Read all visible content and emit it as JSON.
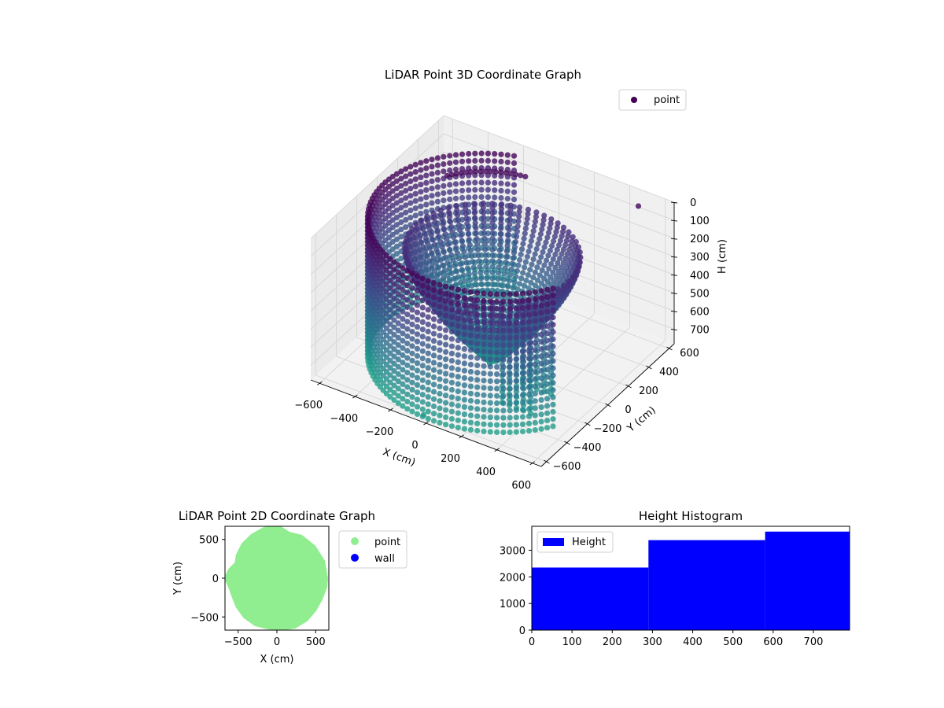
{
  "chart_data": [
    {
      "type": "scatter3d",
      "title": "LiDAR Point 3D Coordinate Graph",
      "xlabel": "X (cm)",
      "ylabel": "Y (cm)",
      "zlabel": "H (cm)",
      "xlim": [
        -650,
        650
      ],
      "ylim": [
        -650,
        650
      ],
      "zlim": [
        780,
        0
      ],
      "z_inverted": true,
      "x_ticks": [
        -600,
        -400,
        -200,
        0,
        200,
        400,
        600
      ],
      "y_ticks": [
        -600,
        -400,
        -200,
        0,
        200,
        400,
        600
      ],
      "z_ticks": [
        0,
        100,
        200,
        300,
        400,
        500,
        600,
        700
      ],
      "grid": true,
      "legend": {
        "position": "top-right",
        "entries": [
          {
            "name": "point",
            "color": "#440154"
          }
        ]
      },
      "colormap": "viridis",
      "series": [
        {
          "name": "point",
          "description_free": true,
          "bowl_wall": {
            "radius_top": 430,
            "radius_bottom": 30,
            "z_top": 180,
            "z_bottom": 760,
            "center": [
              0,
              0
            ]
          },
          "outer_arc": {
            "radius": 610,
            "theta_start_deg": 110,
            "theta_end_deg": 330,
            "z_top": 20,
            "z_bottom": 780
          },
          "rim_arc": {
            "radius": 470,
            "theta_start_deg": 100,
            "theta_end_deg": 150,
            "z": 30
          },
          "box": {
            "x": [
              240,
              400
            ],
            "y": [
              -320,
              -120
            ],
            "z": [
              300,
              760
            ]
          },
          "isolated_points": [
            {
              "x": -560,
              "y": 80,
              "z": 560
            },
            {
              "x": -30,
              "y": -620,
              "z": 760
            },
            {
              "x": 60,
              "y": -130,
              "z": 700
            },
            {
              "x": 500,
              "y": 560,
              "z": 30
            }
          ]
        }
      ]
    },
    {
      "type": "scatter",
      "title": "LiDAR Point 2D Coordinate Graph",
      "xlabel": "X (cm)",
      "ylabel": "Y (cm)",
      "xlim": [
        -670,
        670
      ],
      "ylim": [
        -670,
        670
      ],
      "x_ticks": [
        -500,
        0,
        500
      ],
      "y_ticks": [
        -500,
        0,
        500
      ],
      "legend": {
        "position": "outside-right",
        "entries": [
          {
            "name": "point",
            "color": "#90ee90"
          },
          {
            "name": "wall",
            "color": "#0000ff"
          }
        ]
      },
      "series": [
        {
          "name": "point",
          "color": "#90ee90",
          "outline_polar": [
            [
              0,
              640
            ],
            [
              20,
              640
            ],
            [
              40,
              630
            ],
            [
              60,
              625
            ],
            [
              75,
              600
            ],
            [
              90,
              680
            ],
            [
              105,
              660
            ],
            [
              120,
              640
            ],
            [
              135,
              620
            ],
            [
              150,
              590
            ],
            [
              160,
              560
            ],
            [
              170,
              620
            ],
            [
              180,
              660
            ],
            [
              190,
              620
            ],
            [
              200,
              610
            ],
            [
              215,
              630
            ],
            [
              230,
              650
            ],
            [
              245,
              660
            ],
            [
              260,
              650
            ],
            [
              275,
              660
            ],
            [
              290,
              670
            ],
            [
              305,
              660
            ],
            [
              320,
              640
            ],
            [
              335,
              630
            ],
            [
              350,
              640
            ],
            [
              360,
              640
            ]
          ]
        },
        {
          "name": "wall",
          "color": "#0000ff",
          "points": []
        }
      ]
    },
    {
      "type": "bar",
      "title": "Height Histogram",
      "xlabel": "",
      "ylabel": "",
      "bins": [
        [
          0,
          290
        ],
        [
          290,
          580
        ],
        [
          580,
          790
        ]
      ],
      "values": [
        2350,
        3380,
        3700
      ],
      "xlim": [
        0,
        790
      ],
      "ylim": [
        0,
        3900
      ],
      "x_ticks": [
        0,
        100,
        200,
        300,
        400,
        500,
        600,
        700
      ],
      "y_ticks": [
        0,
        1000,
        2000,
        3000
      ],
      "color": "#0000ff",
      "legend": {
        "position": "top-left",
        "entries": [
          {
            "name": "Height",
            "color": "#0000ff"
          }
        ]
      }
    }
  ]
}
